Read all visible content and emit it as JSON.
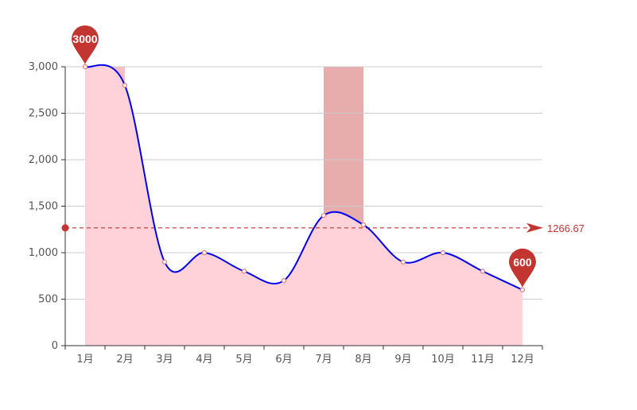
{
  "chart_data": {
    "type": "area",
    "categories": [
      "1月",
      "2月",
      "3月",
      "4月",
      "5月",
      "6月",
      "7月",
      "8月",
      "9月",
      "10月",
      "11月",
      "12月"
    ],
    "values": [
      3000,
      2800,
      900,
      1000,
      800,
      700,
      1400,
      1300,
      900,
      1000,
      800,
      600
    ],
    "ylim": [
      0,
      3000
    ],
    "yticks": [
      0,
      500,
      1000,
      1500,
      2000,
      2500,
      3000
    ],
    "ytick_labels": [
      "0",
      "500",
      "1,000",
      "1,500",
      "2,000",
      "2,500",
      "3,000"
    ],
    "grid": true,
    "smooth": true,
    "mark_points": [
      {
        "category": "1月",
        "value": 3000,
        "label": "3000"
      },
      {
        "category": "12月",
        "value": 600,
        "label": "600"
      }
    ],
    "mark_line": {
      "type": "average",
      "value": 1266.67,
      "label": "1266.67"
    },
    "mark_areas": [
      {
        "from": "1月",
        "to": "2月"
      },
      {
        "from": "7月",
        "to": "8月"
      }
    ]
  },
  "colors": {
    "line": "#0000ee",
    "area_fill": "#ffd1d8",
    "mark_area_1": "#f5b3bb",
    "mark_area_2": "#e6a9a9",
    "mark": "#c23531",
    "grid": "#cccccc",
    "axis": "#333333",
    "point_fill": "#ffffff",
    "point_stroke": "#e07b7b"
  }
}
